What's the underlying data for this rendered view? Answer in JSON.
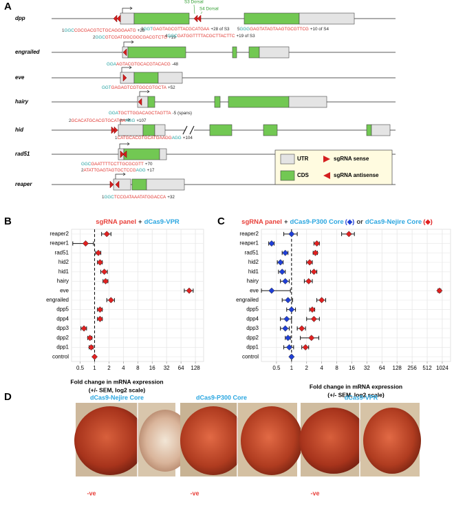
{
  "panel_a": {
    "panel": "A",
    "genes": [
      {
        "name": "dpp",
        "sgrnas": [
          {
            "label": "1",
            "segments": [
              {
                "text": "GGC",
                "color": "#1b9e9e"
              },
              {
                "text": "CGCGACGTCTGCAGGGAATG",
                "color": "#e0302a"
              }
            ],
            "pos": "+28"
          },
          {
            "label": "2",
            "segments": [
              {
                "text": "GGC",
                "color": "#1b9e9e"
              },
              {
                "text": "GTCGATGGCGGCGACGTCTG",
                "color": "#e0302a"
              }
            ],
            "pos": "+19"
          },
          {
            "label": "3",
            "segments": [
              {
                "text": "GGT",
                "color": "#1b9e9e"
              },
              {
                "text": "GAGTAGCGTTACGCATGAA",
                "color": "#e0302a"
              }
            ],
            "pos": "+28 of S3"
          },
          {
            "label": "4",
            "segments": [
              {
                "text": "GGC",
                "color": "#1b9e9e"
              },
              {
                "text": "GATGGTTTTACGCTTACTTC",
                "color": "#e0302a"
              }
            ],
            "pos": "+19 of S3"
          },
          {
            "label": "5",
            "segments": [
              {
                "text": "GGG",
                "color": "#1b9e9e"
              },
              {
                "text": "GAGTATAGTAAGTGCGTTCG",
                "color": "#e0302a"
              }
            ],
            "pos": "+10 of S4"
          }
        ]
      },
      {
        "name": "engrailed",
        "sgrnas": [
          {
            "segments": [
              {
                "text": "GGA",
                "color": "#1b9e9e"
              },
              {
                "text": "AGTACGTGCACGTACACG",
                "color": "#e0302a"
              }
            ],
            "pos": "-48"
          }
        ]
      },
      {
        "name": "eve",
        "sgrnas": [
          {
            "segments": [
              {
                "text": "GGT",
                "color": "#1b9e9e"
              },
              {
                "text": "GAGAGTCGTGGCGTGCTA",
                "color": "#e0302a"
              }
            ],
            "pos": "+52"
          }
        ]
      },
      {
        "name": "hairy",
        "sgrnas": [
          {
            "segments": [
              {
                "text": "GGA",
                "color": "#1b9e9e"
              },
              {
                "text": "TGCTTGGACAGCTAGTTA",
                "color": "#e0302a"
              }
            ],
            "pos": "-5 (spans)"
          }
        ]
      },
      {
        "name": "hid",
        "sgrnas": [
          {
            "label": "2",
            "segments": [
              {
                "text": "GCACATGCACGTGCATGA",
                "color": "#e0302a"
              },
              {
                "text": "AGG",
                "color": "#1b9e9e"
              }
            ],
            "pos": "+107"
          },
          {
            "label": "1",
            "segments": [
              {
                "text": "CATGCACGTGCATGAAGG",
                "color": "#e0302a"
              },
              {
                "text": "AGG",
                "color": "#1b9e9e"
              }
            ],
            "pos": "+104"
          }
        ]
      },
      {
        "name": "rad51",
        "sgrnas": [
          {
            "segments": [
              {
                "text": "GGC",
                "color": "#1b9e9e"
              },
              {
                "text": "GAATTTTCCTTGCGCGTT",
                "color": "#e0302a"
              }
            ],
            "pos": "+70"
          },
          {
            "label": "2",
            "segments": [
              {
                "text": "ATATTGAGTAGTGCTCCG",
                "color": "#e0302a"
              },
              {
                "text": "AGG",
                "color": "#1b9e9e"
              }
            ],
            "pos": "+17"
          }
        ]
      },
      {
        "name": "reaper",
        "sgrnas": [
          {
            "label": "1",
            "segments": [
              {
                "text": "GGC",
                "color": "#1b9e9e"
              },
              {
                "text": "TCCGATAAATATGGACCA",
                "color": "#e0302a"
              }
            ],
            "pos": "+32"
          }
        ]
      }
    ],
    "annotations": [
      "S3 Dorsal",
      "S4 Dorsal"
    ],
    "legend": [
      "UTR",
      "sgRNA sense",
      "CDS",
      "sgRNA antisense"
    ]
  },
  "chart_data": [
    {
      "type": "dot",
      "panel": "B",
      "title": [
        {
          "text": "sgRNA panel",
          "color": "#e8403a"
        },
        {
          "text": "+",
          "color": "#333333"
        },
        {
          "text": "dCas9-VPR",
          "color": "#2aa6e0"
        }
      ],
      "categories": [
        "reaper2",
        "reaper1",
        "rad51",
        "hid2",
        "hid1",
        "hairy",
        "eve",
        "engrailed",
        "dpp5",
        "dpp4",
        "dpp3",
        "dpp2",
        "dpp1",
        "control"
      ],
      "series": [
        {
          "color": "#e02020",
          "values": [
            1.8,
            0.65,
            1.2,
            1.3,
            1.6,
            1.7,
            95,
            2.2,
            1.3,
            1.3,
            0.6,
            0.8,
            0.85,
            1
          ],
          "errors": [
            0.4,
            0.3,
            0.15,
            0.15,
            0.25,
            0.2,
            20,
            0.4,
            0.15,
            0.15,
            0.08,
            0.08,
            0.08,
            0
          ]
        }
      ],
      "xscale": "log",
      "log_base": 2,
      "xlim": [
        0.33,
        190
      ],
      "xticks": [
        0.5,
        1,
        2,
        4,
        8,
        16,
        32,
        64,
        128
      ],
      "reference": 1,
      "grid": true,
      "xlabel": [
        "Fold change in mRNA expression",
        "(+/- SEM, log2 scale)"
      ]
    },
    {
      "type": "dot",
      "panel": "C",
      "title": [
        {
          "text": "sgRNA panel",
          "color": "#e8403a"
        },
        {
          "text": "+",
          "color": "#333333"
        },
        {
          "text": "dCas9-P300 Core",
          "color": "#2aa6e0"
        },
        {
          "text": "or",
          "color": "#333333"
        },
        {
          "text": "dCas9-Nejire Core",
          "color": "#2aa6e0"
        }
      ],
      "categories": [
        "reaper2",
        "reaper1",
        "rad51",
        "hid2",
        "hid1",
        "hairy",
        "eve",
        "engrailed",
        "dpp5",
        "dpp4",
        "dpp3",
        "dpp2",
        "dpp1",
        "control"
      ],
      "series": [
        {
          "color": "#1f3fd6",
          "values": [
            1.0,
            0.4,
            0.75,
            0.6,
            0.65,
            0.75,
            0.4,
            0.85,
            1.0,
            0.8,
            0.75,
            0.85,
            0.9,
            1.0
          ],
          "errors": [
            0.3,
            0.05,
            0.1,
            0.08,
            0.1,
            0.15,
            0.55,
            0.2,
            0.2,
            0.2,
            0.15,
            0.1,
            0.2,
            0.05
          ]
        },
        {
          "color": "#e02020",
          "values": [
            14,
            3.2,
            3.0,
            2.3,
            2.8,
            2.2,
            900,
            4,
            2.6,
            2.8,
            1.6,
            2.5,
            1.9,
            null
          ],
          "errors": [
            4,
            0.4,
            0.3,
            0.3,
            0.4,
            0.4,
            60,
            0.8,
            0.3,
            0.8,
            0.3,
            1.0,
            0.3,
            null
          ]
        }
      ],
      "xscale": "log",
      "log_base": 2,
      "xlim": [
        0.25,
        1500
      ],
      "xticks": [
        0.5,
        1,
        2,
        4,
        8,
        16,
        32,
        64,
        128,
        256,
        512,
        1024
      ],
      "reference": 1,
      "grid": true,
      "xlabel": [
        "Fold change in mRNA expression",
        "(+/- SEM, log2 scale)"
      ]
    }
  ],
  "panel_d": {
    "panel": "D",
    "titles": [
      "dCas9-Nejire Core",
      "dCas9-P300 Core",
      "dCas9-VPR"
    ],
    "labels": [
      "-ve",
      "-ve",
      "-ve"
    ]
  }
}
